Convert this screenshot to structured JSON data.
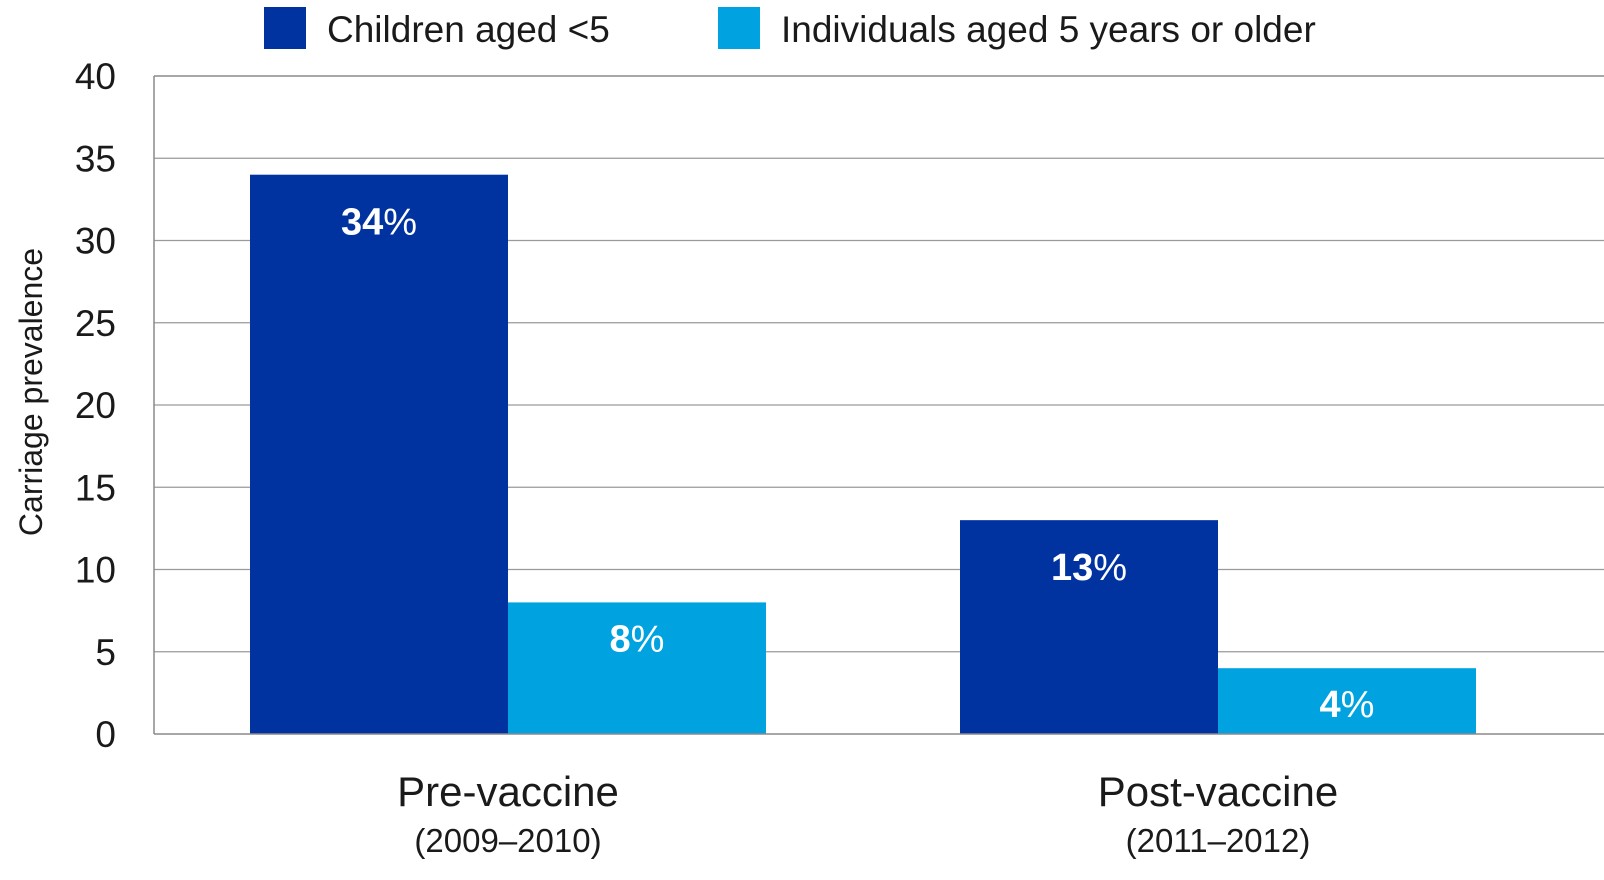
{
  "chart_data": {
    "type": "bar",
    "categories": [
      "Pre-vaccine",
      "Post-vaccine"
    ],
    "category_sublabels": [
      "(2009–2010)",
      "(2011–2012)"
    ],
    "series": [
      {
        "name": "Children aged <5",
        "color": "#0033A0",
        "values": [
          34,
          13
        ],
        "value_labels": [
          {
            "number": "34",
            "unit": "%"
          },
          {
            "number": "13",
            "unit": "%"
          }
        ]
      },
      {
        "name": "Individuals aged 5 years or older",
        "color": "#00A3E0",
        "values": [
          8,
          4
        ],
        "value_labels": [
          {
            "number": "8",
            "unit": "%"
          },
          {
            "number": "4",
            "unit": "%"
          }
        ]
      }
    ],
    "title": "",
    "xlabel": "",
    "ylabel": "Carriage prevalence",
    "ylim": [
      0,
      40
    ],
    "yticks": [
      "0",
      "5",
      "10",
      "15",
      "20",
      "25",
      "30",
      "35",
      "40"
    ],
    "grid": true,
    "legend_position": "top-center"
  }
}
